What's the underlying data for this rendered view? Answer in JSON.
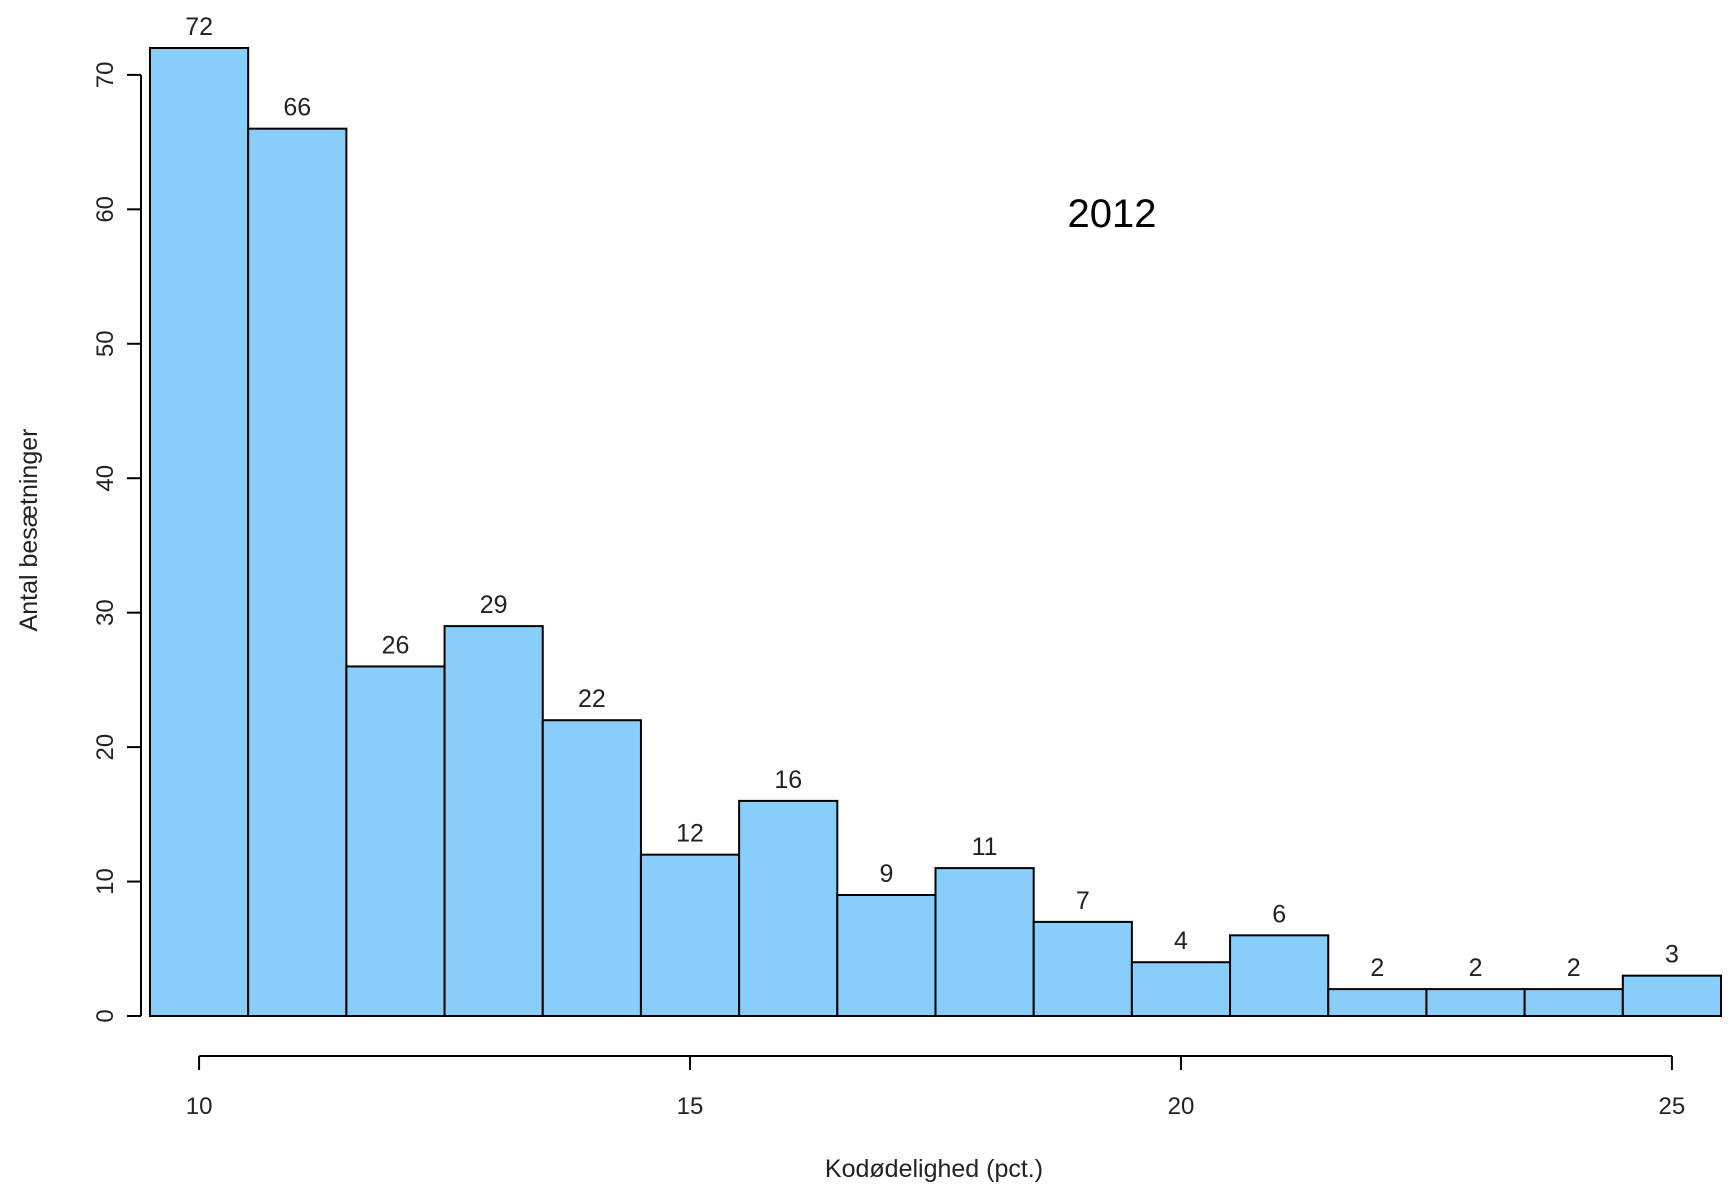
{
  "chart_data": {
    "type": "bar",
    "bins": [
      {
        "start": 9.5,
        "end": 10.5,
        "value": 72
      },
      {
        "start": 10.5,
        "end": 11.5,
        "value": 66
      },
      {
        "start": 11.5,
        "end": 12.5,
        "value": 26
      },
      {
        "start": 12.5,
        "end": 13.5,
        "value": 29
      },
      {
        "start": 13.5,
        "end": 14.5,
        "value": 22
      },
      {
        "start": 14.5,
        "end": 15.5,
        "value": 12
      },
      {
        "start": 15.5,
        "end": 16.5,
        "value": 16
      },
      {
        "start": 16.5,
        "end": 17.5,
        "value": 9
      },
      {
        "start": 17.5,
        "end": 18.5,
        "value": 11
      },
      {
        "start": 18.5,
        "end": 19.5,
        "value": 7
      },
      {
        "start": 19.5,
        "end": 20.5,
        "value": 4
      },
      {
        "start": 20.5,
        "end": 21.5,
        "value": 6
      },
      {
        "start": 21.5,
        "end": 22.5,
        "value": 2
      },
      {
        "start": 22.5,
        "end": 23.5,
        "value": 2
      },
      {
        "start": 23.5,
        "end": 24.5,
        "value": 2
      },
      {
        "start": 24.5,
        "end": 25.5,
        "value": 3
      }
    ],
    "xlabel": "Kodødelighed (pct.)",
    "ylabel": "Antal besætninger",
    "annotation": "2012",
    "xticks": [
      10,
      15,
      20,
      25
    ],
    "yticks": [
      0,
      10,
      20,
      30,
      40,
      50,
      60,
      70
    ],
    "xlim": [
      9.5,
      25.5
    ],
    "ylim": [
      0,
      72
    ],
    "grid": false,
    "bar_color": "#87CEFA",
    "edge_color": "#000000"
  }
}
